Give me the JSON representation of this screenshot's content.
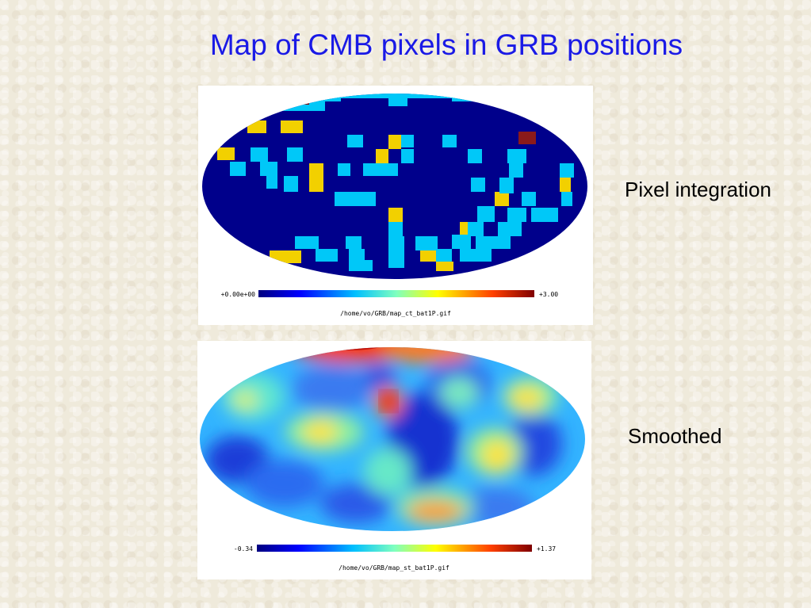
{
  "slide": {
    "title": "Map of CMB pixels in GRB positions",
    "labels": {
      "pixel_integration": "Pixel integration",
      "smoothed": "Smoothed"
    }
  },
  "maps": [
    {
      "name": "pixel",
      "colorbar_min": "+0.00e+00",
      "colorbar_max": "+3.00",
      "filename": "/home/vo/GRB/map_ct_bat1P.gif"
    },
    {
      "name": "smoothed",
      "colorbar_min": "-0.34",
      "colorbar_max": "+1.37",
      "filename": "/home/vo/GRB/map_st_bat1P.gif"
    }
  ],
  "colors": {
    "title": "#1a1ae6",
    "map_background": "#000080",
    "low": "#00bfff",
    "mid": "#ffd700",
    "high": "#8b0000"
  }
}
